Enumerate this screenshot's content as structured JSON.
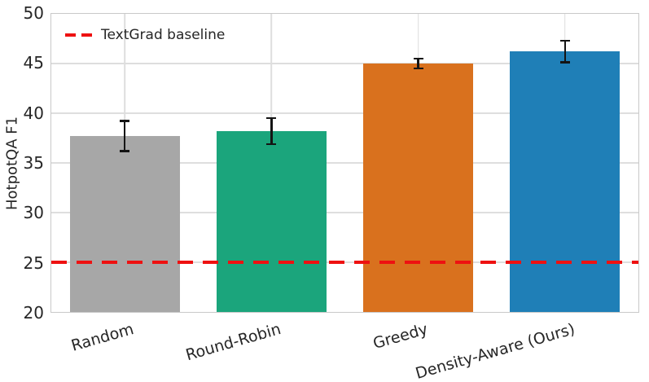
{
  "chart_data": {
    "type": "bar",
    "title": "",
    "xlabel": "",
    "ylabel": "HotpotQA F1",
    "ylim": [
      20,
      50
    ],
    "yticks": [
      20,
      25,
      30,
      35,
      40,
      45,
      50
    ],
    "categories": [
      "Random",
      "Round-Robin",
      "Greedy",
      "Density-Aware (Ours)"
    ],
    "values": [
      37.7,
      38.2,
      45.0,
      46.2
    ],
    "error_bars": [
      1.5,
      1.3,
      0.5,
      1.1
    ],
    "bar_colors": [
      "#a7a7a7",
      "#1ba57c",
      "#d9711e",
      "#1f7fb7"
    ],
    "bar_width_fraction": 0.75,
    "grid": true,
    "grid_color": "#dedede",
    "background": "#ffffff",
    "xtick_rotation_deg": 16,
    "baseline": {
      "value": 25,
      "label": "TextGrad baseline",
      "color": "#ee1111",
      "line_style": "dashed"
    },
    "legend": {
      "position": "upper-left",
      "entries": [
        {
          "label": "TextGrad baseline",
          "marker": "dashed-line",
          "color": "#ee1111"
        }
      ]
    }
  }
}
